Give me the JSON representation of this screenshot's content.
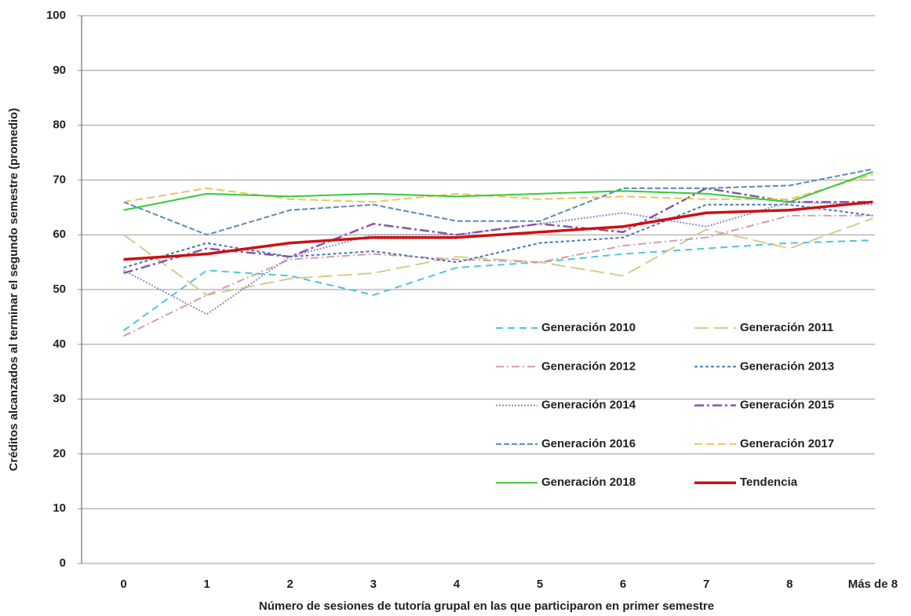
{
  "chart_data": {
    "type": "line",
    "x_label": "Número de sesiones de tutoría grupal en las que participaron en primer semestre",
    "y_label": "Créditos alcanzados al terminar el  segundo semestre (promedio)",
    "categories": [
      "0",
      "1",
      "2",
      "3",
      "4",
      "5",
      "6",
      "7",
      "8",
      "Más de 8"
    ],
    "ylim": [
      0,
      100
    ],
    "yticks": [
      0,
      10,
      20,
      30,
      40,
      50,
      60,
      70,
      80,
      90,
      100
    ],
    "grid": true,
    "legend": "lower right",
    "series": [
      {
        "name": "Generación 2010",
        "color": "#4cc6df",
        "dash": "9 6",
        "width": 2,
        "values": [
          42.5,
          53.5,
          52.5,
          49,
          54,
          55,
          56.5,
          57.5,
          58.5,
          59
        ]
      },
      {
        "name": "Generación 2011",
        "color": "#d6cb8c",
        "dash": "18 7",
        "width": 2,
        "values": [
          60,
          49,
          52,
          53,
          56,
          55,
          52.5,
          61,
          57.5,
          63
        ]
      },
      {
        "name": "Generación 2012",
        "color": "#d99aa9",
        "dash": "10 4 2 4",
        "width": 2,
        "values": [
          41.5,
          49,
          55.5,
          56.5,
          55.5,
          55,
          58,
          59.5,
          63.5,
          63.5
        ]
      },
      {
        "name": "Generación 2013",
        "color": "#4a78b5",
        "dash": "4 3",
        "width": 2,
        "values": [
          54,
          58.5,
          56,
          57,
          55,
          58.5,
          59.5,
          65.5,
          65.5,
          63.5
        ]
      },
      {
        "name": "Generación 2014",
        "color": "#8a8cc8",
        "dash": "2 2",
        "width": 2,
        "values": [
          53.5,
          45.5,
          56,
          60,
          60,
          62,
          64,
          61.5,
          66,
          65.5
        ]
      },
      {
        "name": "Generación 2015",
        "color": "#8a55a8",
        "dash": "12 4 3 4",
        "width": 2.5,
        "values": [
          53,
          57.5,
          56,
          62,
          60,
          62,
          60.5,
          68.5,
          66,
          66
        ]
      },
      {
        "name": "Generación 2016",
        "color": "#5b8bb9",
        "dash": "7 3",
        "width": 2,
        "values": [
          66,
          60,
          64.5,
          65.5,
          62.5,
          62.5,
          68.5,
          68.5,
          69,
          72
        ]
      },
      {
        "name": "Generación 2017",
        "color": "#f4c15e",
        "dash": "10 5",
        "width": 2,
        "values": [
          66,
          68.5,
          66.5,
          66,
          67.5,
          66.5,
          67,
          66.5,
          66.5,
          71
        ]
      },
      {
        "name": "Generación 2018",
        "color": "#33cc33",
        "dash": "",
        "width": 2,
        "values": [
          64.5,
          67.5,
          67,
          67.5,
          67,
          67.5,
          68,
          67.5,
          66,
          71.5
        ]
      },
      {
        "name": "Tendencia",
        "color": "#cc1111",
        "dash": "",
        "width": 3.5,
        "values": [
          55.5,
          56.5,
          58.5,
          59.5,
          59.5,
          60.5,
          61.5,
          64,
          64.5,
          66
        ]
      }
    ]
  }
}
